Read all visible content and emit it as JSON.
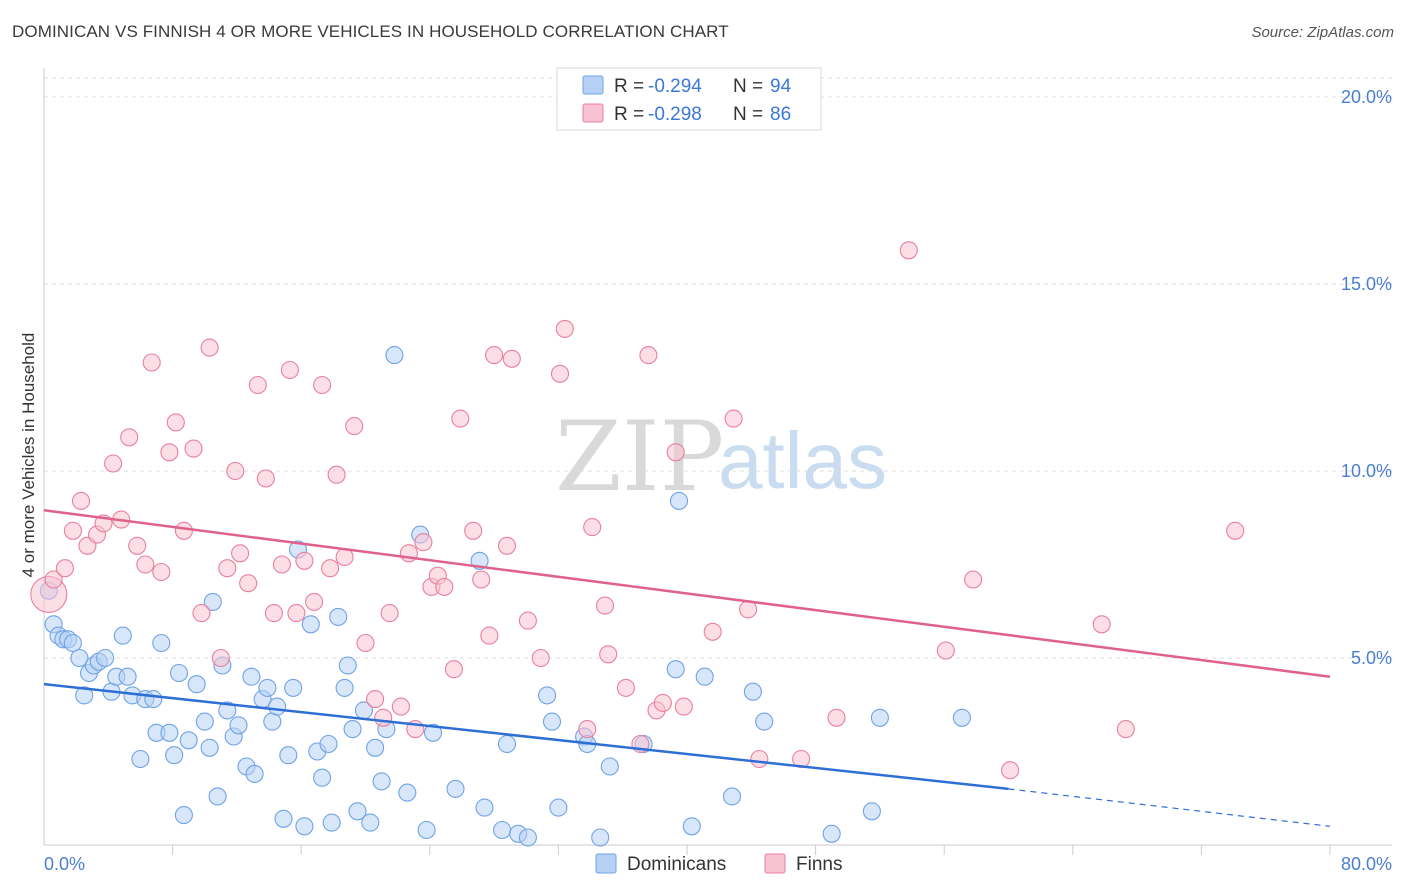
{
  "header": {
    "title": "DOMINICAN VS FINNISH 4 OR MORE VEHICLES IN HOUSEHOLD CORRELATION CHART",
    "source": "Source: ZipAtlas.com"
  },
  "watermark": {
    "zip": "ZIP",
    "atlas": "atlas"
  },
  "legend_top": {
    "rows": [
      {
        "r_label": "R = ",
        "r_value": "-0.294",
        "n_label": "N = ",
        "n_value": "94",
        "color": "#a8c8f0"
      },
      {
        "r_label": "R = ",
        "r_value": "-0.298",
        "n_label": "N = ",
        "n_value": "86",
        "color": "#f5b8c8"
      }
    ]
  },
  "legend_bottom": {
    "items": [
      "Dominicans",
      "Finns"
    ]
  },
  "axis": {
    "ylabel": "4 or more Vehicles in Household",
    "x_min_label": "0.0%",
    "x_max_label": "80.0%",
    "y_ticks": [
      "5.0%",
      "10.0%",
      "15.0%",
      "20.0%"
    ]
  },
  "chart_data": {
    "type": "scatter",
    "title": "DOMINICAN VS FINNISH 4 OR MORE VEHICLES IN HOUSEHOLD CORRELATION CHART",
    "xlabel": "",
    "ylabel": "4 or more Vehicles in Household",
    "xlim": [
      0,
      80
    ],
    "ylim": [
      0,
      20.5
    ],
    "x_unit": "%",
    "y_unit": "%",
    "grid": "horizontal dashed",
    "series": [
      {
        "name": "Dominicans",
        "color": "#6fa3e6",
        "fill": "#b7d1f4",
        "regression": {
          "x": [
            0,
            60
          ],
          "y": [
            4.3,
            1.5
          ],
          "extended_to": [
            80,
            0.5
          ]
        },
        "points": [
          [
            0.3,
            6.8
          ],
          [
            0.6,
            5.9
          ],
          [
            0.9,
            5.6
          ],
          [
            1.2,
            5.5
          ],
          [
            1.5,
            5.5
          ],
          [
            1.8,
            5.4
          ],
          [
            2.2,
            5.0
          ],
          [
            2.5,
            4.0
          ],
          [
            2.8,
            4.6
          ],
          [
            3.1,
            4.8
          ],
          [
            3.4,
            4.9
          ],
          [
            3.8,
            5.0
          ],
          [
            4.2,
            4.1
          ],
          [
            4.5,
            4.5
          ],
          [
            4.9,
            5.6
          ],
          [
            5.2,
            4.5
          ],
          [
            5.5,
            4.0
          ],
          [
            6.0,
            2.3
          ],
          [
            6.3,
            3.9
          ],
          [
            6.8,
            3.9
          ],
          [
            7.0,
            3.0
          ],
          [
            7.3,
            5.4
          ],
          [
            7.8,
            3.0
          ],
          [
            8.1,
            2.4
          ],
          [
            8.4,
            4.6
          ],
          [
            8.7,
            0.8
          ],
          [
            9.0,
            2.8
          ],
          [
            9.5,
            4.3
          ],
          [
            10.0,
            3.3
          ],
          [
            10.3,
            2.6
          ],
          [
            10.5,
            6.5
          ],
          [
            10.8,
            1.3
          ],
          [
            11.1,
            4.8
          ],
          [
            11.4,
            3.6
          ],
          [
            11.8,
            2.9
          ],
          [
            12.1,
            3.2
          ],
          [
            12.6,
            2.1
          ],
          [
            12.9,
            4.5
          ],
          [
            13.1,
            1.9
          ],
          [
            13.6,
            3.9
          ],
          [
            13.9,
            4.2
          ],
          [
            14.2,
            3.3
          ],
          [
            14.5,
            3.7
          ],
          [
            14.9,
            0.7
          ],
          [
            15.2,
            2.4
          ],
          [
            15.5,
            4.2
          ],
          [
            15.8,
            7.9
          ],
          [
            16.2,
            0.5
          ],
          [
            16.6,
            5.9
          ],
          [
            17.0,
            2.5
          ],
          [
            17.3,
            1.8
          ],
          [
            17.7,
            2.7
          ],
          [
            17.9,
            0.6
          ],
          [
            18.3,
            6.1
          ],
          [
            18.7,
            4.2
          ],
          [
            18.9,
            4.8
          ],
          [
            19.2,
            3.1
          ],
          [
            19.5,
            0.9
          ],
          [
            19.9,
            3.6
          ],
          [
            20.3,
            0.6
          ],
          [
            20.6,
            2.6
          ],
          [
            21.0,
            1.7
          ],
          [
            21.3,
            3.1
          ],
          [
            21.8,
            13.1
          ],
          [
            22.6,
            1.4
          ],
          [
            23.4,
            8.3
          ],
          [
            23.8,
            0.4
          ],
          [
            24.2,
            3.0
          ],
          [
            25.6,
            1.5
          ],
          [
            27.1,
            7.6
          ],
          [
            27.4,
            1.0
          ],
          [
            28.5,
            0.4
          ],
          [
            28.8,
            2.7
          ],
          [
            29.5,
            0.3
          ],
          [
            30.1,
            0.2
          ],
          [
            31.3,
            4.0
          ],
          [
            31.6,
            3.3
          ],
          [
            32.0,
            1.0
          ],
          [
            33.6,
            2.9
          ],
          [
            33.8,
            2.7
          ],
          [
            34.6,
            0.2
          ],
          [
            35.2,
            2.1
          ],
          [
            37.3,
            2.7
          ],
          [
            39.3,
            4.7
          ],
          [
            39.5,
            9.2
          ],
          [
            40.3,
            0.5
          ],
          [
            41.1,
            4.5
          ],
          [
            42.8,
            1.3
          ],
          [
            44.1,
            4.1
          ],
          [
            44.8,
            3.3
          ],
          [
            49.0,
            0.3
          ],
          [
            51.5,
            0.9
          ],
          [
            52.0,
            3.4
          ],
          [
            57.1,
            3.4
          ]
        ]
      },
      {
        "name": "Finns",
        "color": "#ea7fa0",
        "fill": "#f7c3d2",
        "regression": {
          "x": [
            0,
            80
          ],
          "y": [
            8.95,
            4.5
          ]
        },
        "points": [
          [
            0.3,
            6.7
          ],
          [
            0.6,
            7.1
          ],
          [
            1.3,
            7.4
          ],
          [
            1.8,
            8.4
          ],
          [
            2.3,
            9.2
          ],
          [
            2.7,
            8.0
          ],
          [
            3.3,
            8.3
          ],
          [
            3.7,
            8.6
          ],
          [
            4.3,
            10.2
          ],
          [
            4.8,
            8.7
          ],
          [
            5.3,
            10.9
          ],
          [
            5.8,
            8.0
          ],
          [
            6.3,
            7.5
          ],
          [
            6.7,
            12.9
          ],
          [
            7.3,
            7.3
          ],
          [
            7.8,
            10.5
          ],
          [
            8.2,
            11.3
          ],
          [
            8.7,
            8.4
          ],
          [
            9.3,
            10.6
          ],
          [
            9.8,
            6.2
          ],
          [
            10.3,
            13.3
          ],
          [
            11.0,
            5.0
          ],
          [
            11.4,
            7.4
          ],
          [
            11.9,
            10.0
          ],
          [
            12.2,
            7.8
          ],
          [
            12.7,
            7.0
          ],
          [
            13.3,
            12.3
          ],
          [
            13.8,
            9.8
          ],
          [
            14.3,
            6.2
          ],
          [
            14.8,
            7.5
          ],
          [
            15.3,
            12.7
          ],
          [
            15.7,
            6.2
          ],
          [
            16.2,
            7.6
          ],
          [
            16.8,
            6.5
          ],
          [
            17.3,
            12.3
          ],
          [
            17.8,
            7.4
          ],
          [
            18.2,
            9.9
          ],
          [
            18.7,
            7.7
          ],
          [
            19.3,
            11.2
          ],
          [
            20.0,
            5.4
          ],
          [
            20.6,
            3.9
          ],
          [
            21.1,
            3.4
          ],
          [
            21.5,
            6.2
          ],
          [
            22.2,
            3.7
          ],
          [
            22.7,
            7.8
          ],
          [
            23.1,
            3.1
          ],
          [
            23.6,
            8.1
          ],
          [
            24.1,
            6.9
          ],
          [
            24.5,
            7.2
          ],
          [
            24.9,
            6.9
          ],
          [
            25.5,
            4.7
          ],
          [
            25.9,
            11.4
          ],
          [
            26.7,
            8.4
          ],
          [
            27.2,
            7.1
          ],
          [
            27.7,
            5.6
          ],
          [
            28.0,
            13.1
          ],
          [
            28.8,
            8.0
          ],
          [
            29.1,
            13.0
          ],
          [
            30.1,
            6.0
          ],
          [
            30.9,
            5.0
          ],
          [
            32.1,
            12.6
          ],
          [
            32.4,
            13.8
          ],
          [
            33.8,
            3.1
          ],
          [
            34.1,
            8.5
          ],
          [
            34.9,
            6.4
          ],
          [
            35.1,
            5.1
          ],
          [
            36.2,
            4.2
          ],
          [
            37.1,
            2.7
          ],
          [
            37.6,
            13.1
          ],
          [
            38.1,
            3.6
          ],
          [
            38.5,
            3.8
          ],
          [
            39.3,
            10.5
          ],
          [
            39.8,
            3.7
          ],
          [
            41.6,
            5.7
          ],
          [
            42.9,
            11.4
          ],
          [
            43.8,
            6.3
          ],
          [
            44.5,
            2.3
          ],
          [
            47.1,
            2.3
          ],
          [
            49.3,
            3.4
          ],
          [
            53.8,
            15.9
          ],
          [
            56.1,
            5.2
          ],
          [
            57.8,
            7.1
          ],
          [
            60.1,
            2.0
          ],
          [
            65.8,
            5.9
          ],
          [
            67.3,
            3.1
          ],
          [
            74.1,
            8.4
          ]
        ]
      }
    ]
  }
}
